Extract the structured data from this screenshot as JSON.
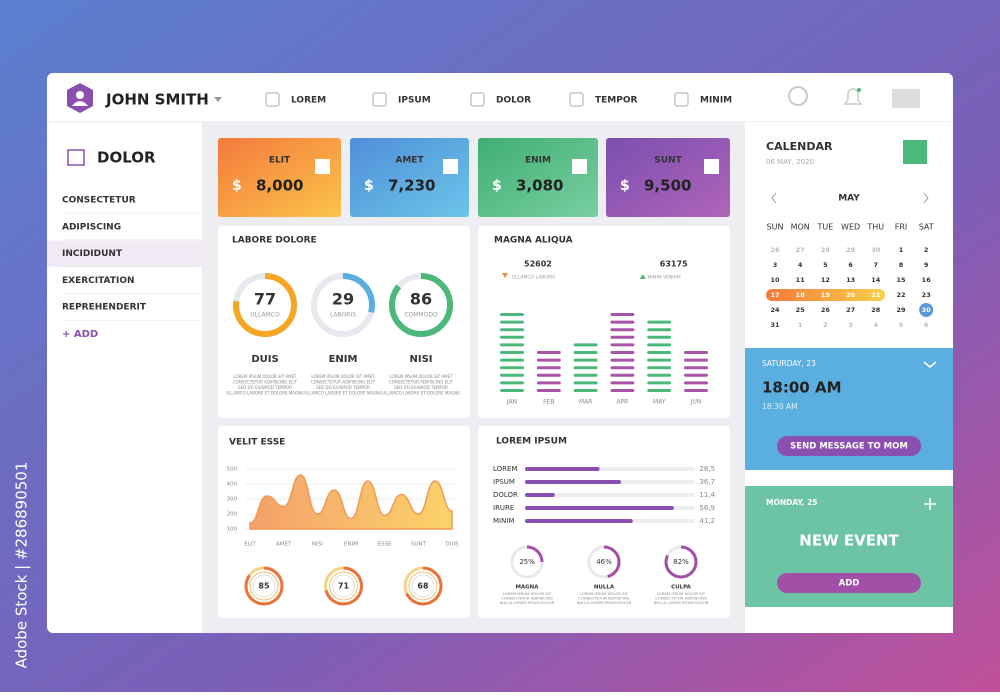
{
  "watermark": "Adobe Stock | #286890501",
  "header": {
    "user": "JOHN SMITH",
    "nav": [
      "LOREM",
      "IPSUM",
      "DOLOR",
      "TEMPOR",
      "MINIM"
    ]
  },
  "sidebar": {
    "title": "DOLOR",
    "items": [
      "CONSECTETUR",
      "ADIPISCING",
      "INCIDIDUNT",
      "EXERCITATION",
      "REPREHENDERIT"
    ],
    "add": "+ ADD"
  },
  "cards": [
    {
      "label": "ELIT",
      "currency": "$",
      "amount": "8,000"
    },
    {
      "label": "AMET",
      "currency": "$",
      "amount": "7,230"
    },
    {
      "label": "ENIM",
      "currency": "$",
      "amount": "3,080"
    },
    {
      "label": "SUNT",
      "currency": "$",
      "amount": "9,500"
    }
  ],
  "labore": {
    "title": "LABORE DOLORE",
    "donuts": [
      {
        "value": 77,
        "label": "ULLAMCO",
        "name": "DUIS",
        "color": "#f5a623"
      },
      {
        "value": 29,
        "label": "LABORIS",
        "name": "ENIM",
        "color": "#5aaee0"
      },
      {
        "value": 86,
        "label": "COMMODO",
        "name": "NISI",
        "color": "#4cb87a"
      }
    ],
    "caption": [
      "LOREM IPSUM DOLOR SIT AMET",
      "CONSECTETUR ADIPISCING ELIT",
      "SED DO EIUSMOD TEMPOR",
      "ULLAMCO LABORE ET DOLORE MAGNA"
    ]
  },
  "magna": {
    "type": "bar",
    "title": "MAGNA ALIQUA",
    "legend": [
      {
        "value": 52602,
        "label": "ULLAMCO LABORIS",
        "color": "#f0883a"
      },
      {
        "value": 63175,
        "label": "MINIM VENIAM",
        "color": "#4cb87a"
      }
    ],
    "categories": [
      "JAN",
      "FEB",
      "MAR",
      "APR",
      "MAY",
      "JUN"
    ],
    "values": [
      11,
      6,
      7,
      11,
      10,
      6
    ],
    "colors": [
      "#4cb87a",
      "#a855a8",
      "#4cb87a",
      "#a855a8",
      "#4cb87a",
      "#a855a8"
    ]
  },
  "velit": {
    "type": "area",
    "title": "VELIT ESSE",
    "ylim": [
      100,
      500
    ],
    "yticks": [
      100,
      200,
      300,
      400,
      500
    ],
    "categories": [
      "ELIT",
      null,
      "AMET",
      null,
      "NISI",
      null,
      "ENIM",
      null,
      "ESSE",
      null,
      "SUNT",
      null,
      "DUIS"
    ],
    "values": [
      140,
      320,
      250,
      460,
      200,
      360,
      170,
      420,
      190,
      330,
      200,
      420,
      220
    ],
    "gauges": [
      85,
      71,
      68
    ]
  },
  "lorem": {
    "type": "bar",
    "title": "LOREM IPSUM",
    "xlim": [
      0,
      65
    ],
    "categories": [
      "LOREM",
      "IPSUM",
      "DOLOR",
      "IRURE",
      "MINIM"
    ],
    "values": [
      28.5,
      36.7,
      11.4,
      56.9,
      41.2
    ],
    "value_labels": [
      "28,5",
      "36,7",
      "11,4",
      "56,9",
      "41,2"
    ],
    "donuts": [
      {
        "value": 25,
        "value_label": "25%",
        "label": "MAGNA"
      },
      {
        "value": 46,
        "value_label": "46%",
        "label": "NULLA"
      },
      {
        "value": 82,
        "value_label": "82%",
        "label": "CULPA"
      }
    ],
    "caption": [
      "LOREM IPSUM DOLOR SIT",
      "CONSECTETUR ADIPISCING",
      "NULLA LOREM IPSUM DOLOR"
    ]
  },
  "calendar": {
    "title": "CALENDAR",
    "date": "06 MAY, 2020",
    "month": "MAY",
    "weekdays": [
      "SUN",
      "MON",
      "TUE",
      "WED",
      "THU",
      "FRI",
      "SAT"
    ],
    "weeks": [
      [
        26,
        27,
        28,
        29,
        30,
        1,
        2
      ],
      [
        3,
        4,
        5,
        6,
        7,
        8,
        9
      ],
      [
        10,
        11,
        12,
        13,
        14,
        15,
        16
      ],
      [
        17,
        18,
        19,
        20,
        21,
        22,
        23
      ],
      [
        24,
        25,
        26,
        27,
        28,
        29,
        30
      ],
      [
        31,
        1,
        2,
        3,
        4,
        5,
        6
      ]
    ]
  },
  "event1": {
    "day": "SATURDAY, 23",
    "time": "18:00 AM",
    "sub": "18:30 AM",
    "button": "SEND MESSAGE TO MOM"
  },
  "event2": {
    "day": "MONDAY, 25",
    "title": "NEW EVENT",
    "button": "ADD"
  }
}
